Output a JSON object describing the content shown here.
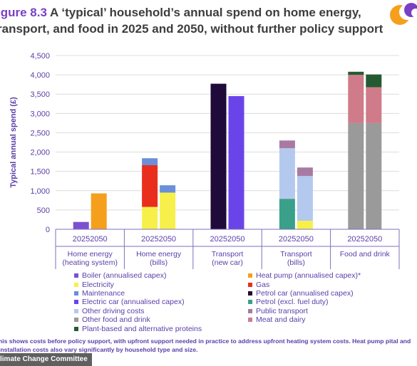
{
  "figure": {
    "label": "igure 8.3",
    "title": " A ‘typical’ household’s annual spend on home energy, ransport, and food in 2025 and 2050, without further policy support",
    "note": "his shows costs before policy support, with upfront support needed in practice to address upfront heating system costs. Heat pump pital and installation costs also vary significantly by household type and size.",
    "source": "limate Change Committee"
  },
  "colors": {
    "Boiler (annualised capex)": "#7c4fd0",
    "Heat pump (annualised capex)*": "#f5a01c",
    "Electricity": "#f7f04a",
    "Gas": "#ea2e1e",
    "Maintenance": "#6b8fd8",
    "Petrol car (annualised capex)": "#1f0a3a",
    "Electric car (annualised capex)": "#6a44e8",
    "Petrol (excl. fuel duty)": "#3aa08a",
    "Other driving costs": "#b4c9ee",
    "Public transport": "#a87aa3",
    "Other food and drink": "#9a9a9a",
    "Meat and dairy": "#cf7b8a",
    "Plant-based and alternative proteins": "#245a32"
  },
  "chart_data": {
    "type": "bar",
    "stacked": true,
    "ylabel": "Typical annual spend (£)",
    "ylim": [
      0,
      4500
    ],
    "yticks": [
      "0",
      "500",
      "1,000",
      "1,500",
      "2,000",
      "2,500",
      "3,000",
      "3,500",
      "4,000",
      "4,500"
    ],
    "grid": true,
    "legend_position": "bottom",
    "groups": [
      {
        "label_line1": "Home energy",
        "label_line2": "(heating system)",
        "years": "20252050",
        "bars": [
          [
            {
              "series": "Boiler (annualised capex)",
              "value": 190
            }
          ],
          [
            {
              "series": "Heat pump (annualised capex)*",
              "value": 930
            }
          ]
        ]
      },
      {
        "label_line1": "Home energy",
        "label_line2": "(bills)",
        "years": "20252050",
        "bars": [
          [
            {
              "series": "Electricity",
              "value": 580
            },
            {
              "series": "Gas",
              "value": 1080
            },
            {
              "series": "Maintenance",
              "value": 180
            }
          ],
          [
            {
              "series": "Electricity",
              "value": 950
            },
            {
              "series": "Maintenance",
              "value": 190
            }
          ]
        ]
      },
      {
        "label_line1": "Transport",
        "label_line2": "(new car)",
        "years": "20252050",
        "bars": [
          [
            {
              "series": "Petrol car (annualised capex)",
              "value": 3770
            }
          ],
          [
            {
              "series": "Electric car (annualised capex)",
              "value": 3450
            }
          ]
        ]
      },
      {
        "label_line1": "Transport",
        "label_line2": "(bills)",
        "years": "20252050",
        "bars": [
          [
            {
              "series": "Petrol (excl. fuel duty)",
              "value": 790
            },
            {
              "series": "Other driving costs",
              "value": 1310
            },
            {
              "series": "Public transport",
              "value": 200
            }
          ],
          [
            {
              "series": "Electricity",
              "value": 220
            },
            {
              "series": "Other driving costs",
              "value": 1160
            },
            {
              "series": "Public transport",
              "value": 220
            }
          ]
        ]
      },
      {
        "label_line1": "Food and drink",
        "label_line2": "",
        "years": "20252050",
        "bars": [
          [
            {
              "series": "Other food and drink",
              "value": 2750
            },
            {
              "series": "Meat and dairy",
              "value": 1250
            },
            {
              "series": "Plant-based and alternative proteins",
              "value": 80
            }
          ],
          [
            {
              "series": "Other food and drink",
              "value": 2750
            },
            {
              "series": "Meat and dairy",
              "value": 930
            },
            {
              "series": "Plant-based and alternative proteins",
              "value": 330
            }
          ]
        ]
      }
    ],
    "legend": [
      "Boiler (annualised capex)",
      "Heat pump (annualised capex)*",
      "Electricity",
      "Gas",
      "Maintenance",
      "Petrol car (annualised capex)",
      "Electric car (annualised capex)",
      "Petrol (excl. fuel duty)",
      "Other driving costs",
      "Public transport",
      "Other food and drink",
      "Meat and dairy",
      "Plant-based and alternative proteins"
    ]
  }
}
